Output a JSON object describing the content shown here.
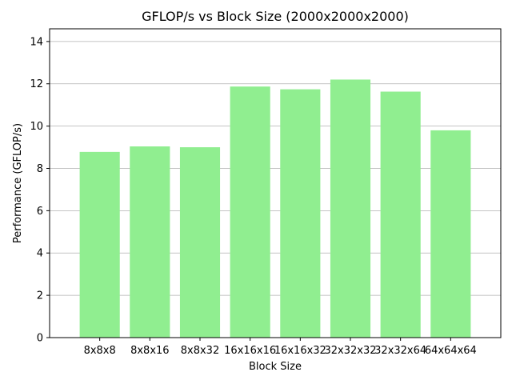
{
  "chart_data": {
    "type": "bar",
    "title": "GFLOP/s vs Block Size (2000x2000x2000)",
    "xlabel": "Block Size",
    "ylabel": "Performance (GFLOP/s)",
    "categories": [
      "8x8x8",
      "8x8x16",
      "8x8x32",
      "16x16x16",
      "16x16x32",
      "32x32x32",
      "32x32x64",
      "64x64x64"
    ],
    "values": [
      8.78,
      9.04,
      9.0,
      11.87,
      11.74,
      12.2,
      11.63,
      9.8
    ],
    "ylim": [
      0,
      14.6
    ],
    "yticks": [
      0,
      2,
      4,
      6,
      8,
      10,
      12,
      14
    ],
    "grid": "horizontal",
    "bar_color": "#90ee90"
  }
}
